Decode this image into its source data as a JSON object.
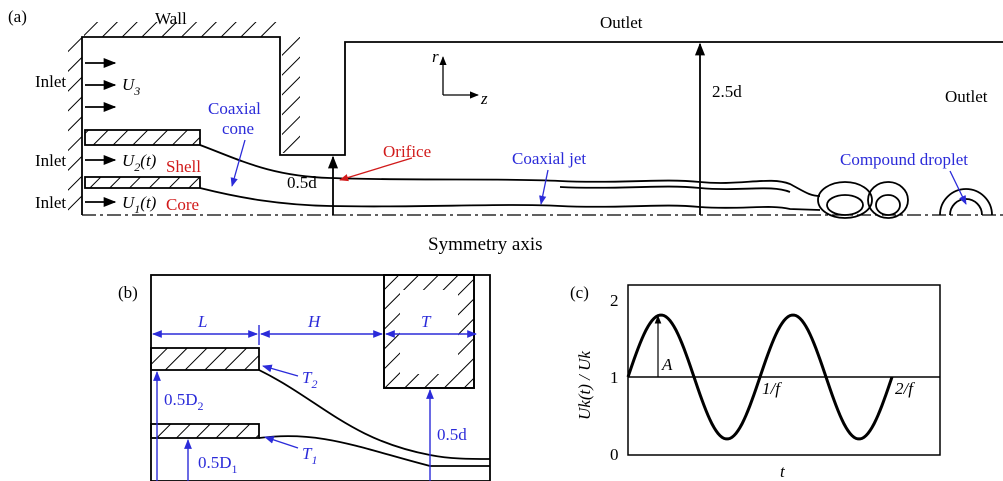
{
  "panel_a": {
    "label": "(a)",
    "wall": "Wall",
    "outlet_top": "Outlet",
    "outlet_right": "Outlet",
    "inlets": [
      "Inlet",
      "Inlet",
      "Inlet"
    ],
    "velocities": [
      {
        "base": "U",
        "sub": "3",
        "suffix": ""
      },
      {
        "base": "U",
        "sub": "2",
        "suffix": "(t)"
      },
      {
        "base": "U",
        "sub": "1",
        "suffix": "(t)"
      }
    ],
    "shell": "Shell",
    "core": "Core",
    "coaxial_cone": [
      "Coaxial",
      "cone"
    ],
    "orifice": "Orifice",
    "orifice_radius": "0.5d",
    "outlet_radius": "2.5d",
    "axis_r": "r",
    "axis_z": "z",
    "coaxial_jet": "Coaxial jet",
    "compound_droplet": "Compound droplet",
    "symmetry_axis": "Symmetry axis"
  },
  "panel_b": {
    "label": "(b)",
    "L": "L",
    "H": "H",
    "T": "T",
    "T2": {
      "base": "T",
      "sub": "2"
    },
    "T1": {
      "base": "T",
      "sub": "1"
    },
    "D2": {
      "base": "0.5D",
      "sub": "2"
    },
    "D1": {
      "base": "0.5D",
      "sub": "1"
    },
    "d": "0.5d"
  },
  "panel_c": {
    "label": "(c)",
    "y_label": "Uk(t) / Uk",
    "yticks": [
      "0",
      "1",
      "2"
    ],
    "amplitude": "A",
    "period_1": "1/f",
    "period_2": "2/f",
    "x_label": "t"
  }
}
